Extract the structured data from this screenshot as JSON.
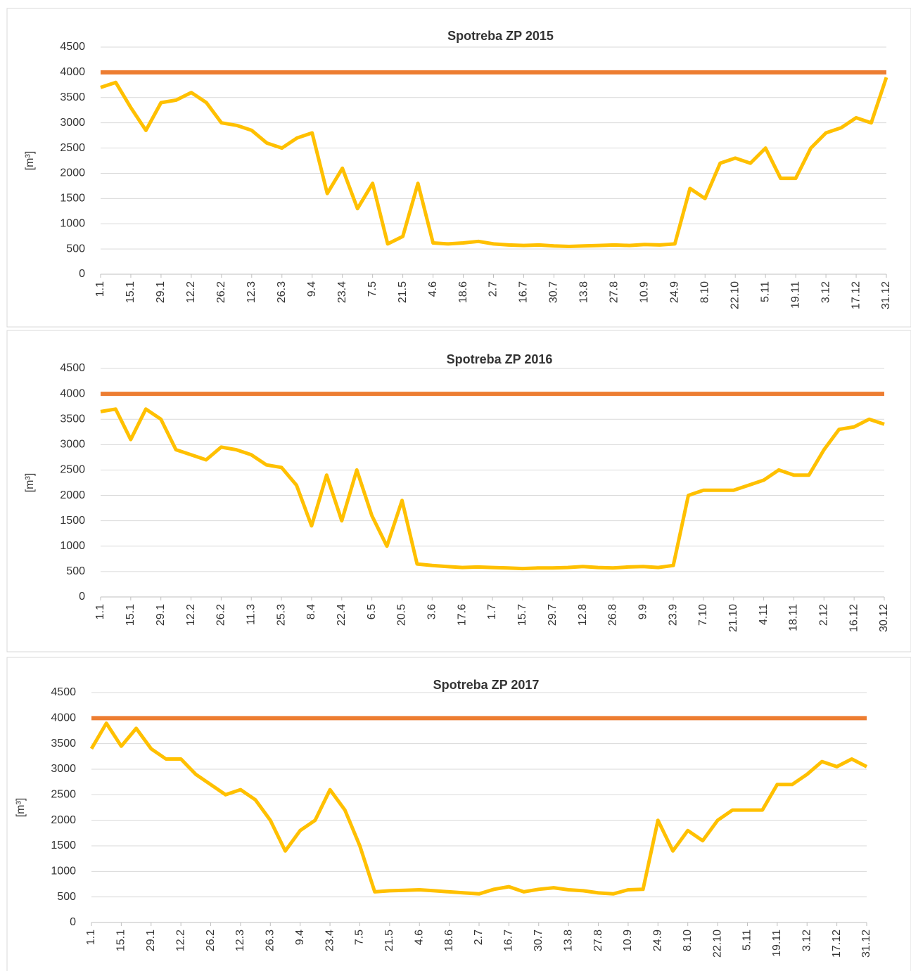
{
  "chart_data": [
    {
      "type": "line",
      "title": "Spotreba ZP 2015",
      "y_label": "[m³]",
      "categories": [
        "1.1",
        null,
        "15.1",
        null,
        "29.1",
        null,
        "12.2",
        null,
        "26.2",
        null,
        "12.3",
        null,
        "26.3",
        null,
        "9.4",
        null,
        "23.4",
        null,
        "7.5",
        null,
        "21.5",
        null,
        "4.6",
        null,
        "18.6",
        null,
        "2.7",
        null,
        "16.7",
        null,
        "30.7",
        null,
        "13.8",
        null,
        "27.8",
        null,
        "10.9",
        null,
        "24.9",
        null,
        "8.10",
        null,
        "22.10",
        null,
        "5.11",
        null,
        "19.11",
        null,
        "3.12",
        null,
        "17.12",
        null,
        "31.12"
      ],
      "values": [
        3700,
        3800,
        3300,
        2850,
        3400,
        3450,
        3600,
        3400,
        3000,
        2950,
        2850,
        2600,
        2500,
        2700,
        2800,
        1600,
        2100,
        1300,
        1800,
        600,
        750,
        1800,
        620,
        600,
        620,
        650,
        600,
        580,
        570,
        580,
        560,
        550,
        560,
        570,
        580,
        570,
        590,
        580,
        600,
        1700,
        1500,
        2200,
        2300,
        2200,
        2500,
        1900,
        1900,
        2500,
        2800,
        2900,
        3100,
        3000,
        3900
      ],
      "color": "#ffc000",
      "threshold": 4000,
      "threshold_color": "#ed7d31",
      "ylim": [
        0,
        4500
      ],
      "yticks": [
        0,
        500,
        1000,
        1500,
        2000,
        2500,
        3000,
        3500,
        4000,
        4500
      ],
      "grid": true
    },
    {
      "type": "line",
      "title": "Spotreba ZP 2016",
      "y_label": "[m³]",
      "categories": [
        "1.1",
        null,
        "15.1",
        null,
        "29.1",
        null,
        "12.2",
        null,
        "26.2",
        null,
        "11.3",
        null,
        "25.3",
        null,
        "8.4",
        null,
        "22.4",
        null,
        "6.5",
        null,
        "20.5",
        null,
        "3.6",
        null,
        "17.6",
        null,
        "1.7",
        null,
        "15.7",
        null,
        "29.7",
        null,
        "12.8",
        null,
        "26.8",
        null,
        "9.9",
        null,
        "23.9",
        null,
        "7.10",
        null,
        "21.10",
        null,
        "4.11",
        null,
        "18.11",
        null,
        "2.12",
        null,
        "16.12",
        null,
        "30.12"
      ],
      "values": [
        3650,
        3700,
        3100,
        3700,
        3500,
        2900,
        2800,
        2700,
        2950,
        2900,
        2800,
        2600,
        2550,
        2200,
        1400,
        2400,
        1500,
        2500,
        1600,
        1000,
        1900,
        650,
        620,
        600,
        580,
        590,
        580,
        570,
        560,
        570,
        570,
        580,
        600,
        580,
        570,
        590,
        600,
        580,
        620,
        2000,
        2100,
        2100,
        2100,
        2200,
        2300,
        2500,
        2400,
        2400,
        2900,
        3300,
        3350,
        3500,
        3400
      ],
      "color": "#ffc000",
      "threshold": 4000,
      "threshold_color": "#ed7d31",
      "ylim": [
        0,
        4500
      ],
      "yticks": [
        0,
        500,
        1000,
        1500,
        2000,
        2500,
        3000,
        3500,
        4000,
        4500
      ],
      "grid": true
    },
    {
      "type": "line",
      "title": "Spotreba ZP 2017",
      "y_label": "[m³]",
      "categories": [
        "1.1",
        null,
        "15.1",
        null,
        "29.1",
        null,
        "12.2",
        null,
        "26.2",
        null,
        "12.3",
        null,
        "26.3",
        null,
        "9.4",
        null,
        "23.4",
        null,
        "7.5",
        null,
        "21.5",
        null,
        "4.6",
        null,
        "18.6",
        null,
        "2.7",
        null,
        "16.7",
        null,
        "30.7",
        null,
        "13.8",
        null,
        "27.8",
        null,
        "10.9",
        null,
        "24.9",
        null,
        "8.10",
        null,
        "22.10",
        null,
        "5.11",
        null,
        "19.11",
        null,
        "3.12",
        null,
        "17.12",
        null,
        "31.12"
      ],
      "values": [
        3400,
        3900,
        3450,
        3800,
        3400,
        3200,
        3200,
        2900,
        2700,
        2500,
        2600,
        2400,
        2000,
        1400,
        1800,
        2000,
        2600,
        2200,
        1500,
        600,
        620,
        630,
        640,
        620,
        600,
        580,
        560,
        650,
        700,
        600,
        650,
        680,
        640,
        620,
        580,
        560,
        640,
        650,
        2000,
        1400,
        1800,
        1600,
        2000,
        2200,
        2200,
        2200,
        2700,
        2700,
        2900,
        3150,
        3050,
        3200,
        3050
      ],
      "color": "#ffc000",
      "threshold": 4000,
      "threshold_color": "#ed7d31",
      "ylim": [
        0,
        4500
      ],
      "yticks": [
        0,
        500,
        1000,
        1500,
        2000,
        2500,
        3000,
        3500,
        4000,
        4500
      ],
      "grid": true
    }
  ]
}
